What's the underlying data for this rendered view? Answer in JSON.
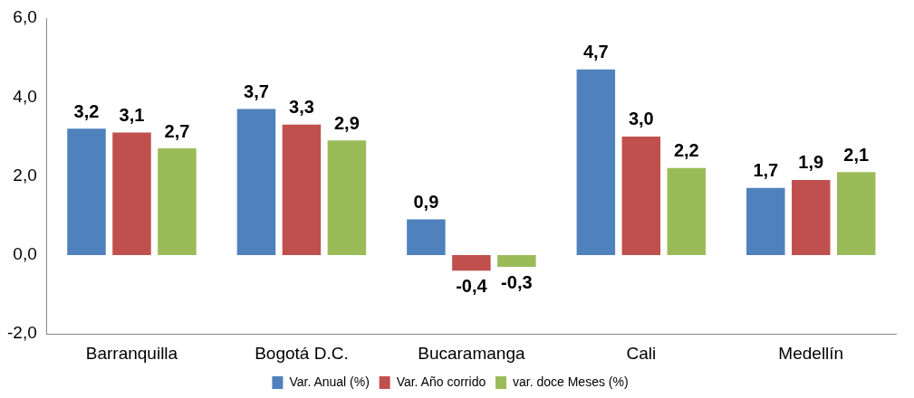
{
  "chart_data": {
    "type": "bar",
    "categories": [
      "Barranquilla",
      "Bogotá D.C.",
      "Bucaramanga",
      "Cali",
      "Medellín"
    ],
    "series": [
      {
        "name": "Var. Anual (%)",
        "color": "#4f81bd",
        "values": [
          3.2,
          3.7,
          0.9,
          4.7,
          1.7
        ],
        "value_labels": [
          "3,2",
          "3,7",
          "0,9",
          "4,7",
          "1,7"
        ]
      },
      {
        "name": "Var. Año corrido",
        "color": "#c0504d",
        "values": [
          3.1,
          3.3,
          -0.4,
          3.0,
          1.9
        ],
        "value_labels": [
          "3,1",
          "3,3",
          "-0,4",
          "3,0",
          "1,9"
        ]
      },
      {
        "name": "var. doce Meses (%)",
        "color": "#9bbb59",
        "values": [
          2.7,
          2.9,
          -0.3,
          2.2,
          2.1
        ],
        "value_labels": [
          "2,7",
          "2,9",
          "-0,3",
          "2,2",
          "2,1"
        ]
      }
    ],
    "ylim": [
      -2,
      6
    ],
    "yticks": [
      {
        "value": -2,
        "label": "-2,0"
      },
      {
        "value": 0,
        "label": "0,0"
      },
      {
        "value": 2,
        "label": "2,0"
      },
      {
        "value": 4,
        "label": "4,0"
      },
      {
        "value": 6,
        "label": "6,0"
      }
    ],
    "grid": false,
    "legend": "bottom"
  }
}
